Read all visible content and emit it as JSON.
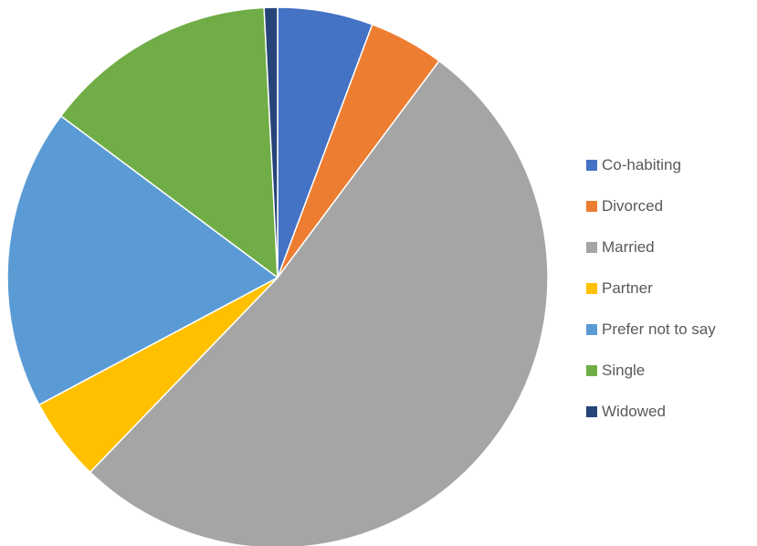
{
  "chart_data": {
    "type": "pie",
    "title": "",
    "start_angle_deg": 0,
    "direction": "clockwise",
    "categories": [
      "Co-habiting",
      "Divorced",
      "Married",
      "Partner",
      "Prefer not to say",
      "Single",
      "Widowed"
    ],
    "values": [
      5.7,
      4.5,
      52.0,
      5.0,
      18.0,
      14.0,
      0.8
    ],
    "colors": [
      "#4472C4",
      "#ED7D31",
      "#A5A5A5",
      "#FFC000",
      "#5B9BD5",
      "#70AD47",
      "#264478"
    ],
    "slice_border_color": "#FFFFFF",
    "legend_position": "right"
  }
}
